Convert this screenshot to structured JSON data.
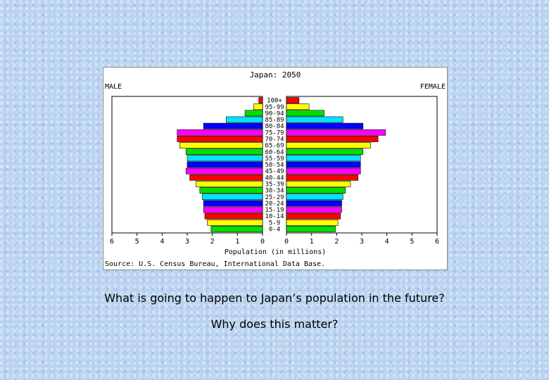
{
  "chart_data": {
    "type": "bar",
    "title": "Japan: 2050",
    "left_label": "MALE",
    "right_label": "FEMALE",
    "xlabel": "Population (in millions)",
    "source": "Source: U.S. Census Bureau, International Data Base.",
    "xlim": [
      0,
      6
    ],
    "x_ticks": [
      "6",
      "5",
      "4",
      "3",
      "2",
      "1",
      "0",
      "0",
      "1",
      "2",
      "3",
      "4",
      "5",
      "6"
    ],
    "categories": [
      "100+",
      "95-99",
      "90-94",
      "85-89",
      "80-84",
      "75-79",
      "70-74",
      "65-69",
      "60-64",
      "55-59",
      "50-54",
      "45-49",
      "40-44",
      "35-39",
      "30-34",
      "25-29",
      "20-24",
      "15-19",
      "10-14",
      "5-9",
      "0-4"
    ],
    "series": [
      {
        "name": "MALE",
        "values": [
          0.15,
          0.35,
          0.7,
          1.45,
          2.35,
          3.4,
          3.4,
          3.3,
          3.05,
          3.0,
          3.0,
          3.05,
          2.9,
          2.65,
          2.5,
          2.4,
          2.35,
          2.35,
          2.3,
          2.2,
          2.05
        ]
      },
      {
        "name": "FEMALE",
        "values": [
          0.5,
          0.9,
          1.5,
          2.25,
          3.05,
          3.95,
          3.65,
          3.35,
          3.05,
          2.95,
          2.95,
          2.95,
          2.85,
          2.55,
          2.35,
          2.25,
          2.2,
          2.2,
          2.15,
          2.05,
          1.95
        ]
      }
    ],
    "bar_colors": [
      "#ff0000",
      "#ffff00",
      "#00e000",
      "#00e5ff",
      "#0000ff",
      "#ff00ff"
    ],
    "text_color": "#000000",
    "grid": false
  },
  "captions": {
    "question_1": "What is going to happen to Japan’s population in the future?",
    "question_2": "Why does this matter?"
  }
}
